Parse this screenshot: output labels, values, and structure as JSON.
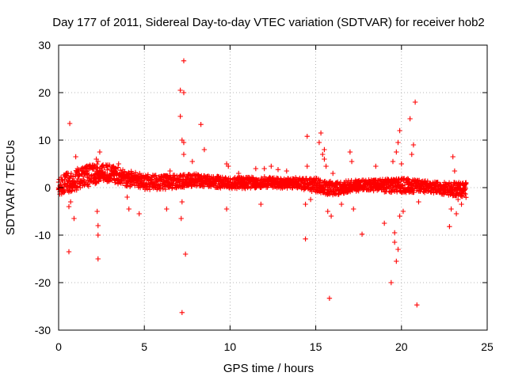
{
  "chart_data": {
    "type": "scatter",
    "title": "Day 177 of 2011, Sidereal Day-to-day VTEC variation (SDTVAR) for receiver hob2",
    "xlabel": "GPS time / hours",
    "ylabel": "SDTVAR / TECUs",
    "xlim": [
      0,
      25
    ],
    "ylim": [
      -30,
      30
    ],
    "xticks": [
      0,
      5,
      10,
      15,
      20,
      25
    ],
    "yticks": [
      30,
      20,
      10,
      0,
      -10,
      -20,
      -30
    ],
    "xtick_labels": [
      "0",
      "5",
      "10",
      "15",
      "20",
      "25"
    ],
    "ytick_labels": [
      "30",
      "20",
      "10",
      "0",
      "-10",
      "-20",
      "-30"
    ],
    "grid": true,
    "marker": "+",
    "color": "#ff0000",
    "band": {
      "x": [
        0,
        1,
        2,
        2.5,
        3,
        4,
        5,
        6,
        7,
        8,
        9,
        10,
        11,
        12,
        13,
        14,
        15,
        16,
        17,
        18,
        19,
        20,
        21,
        22,
        23,
        23.8
      ],
      "y": [
        0.5,
        1.5,
        2.8,
        3.2,
        3.0,
        2.0,
        1.2,
        1.0,
        1.3,
        1.6,
        1.3,
        0.9,
        1.0,
        1.2,
        0.9,
        1.0,
        0.5,
        -0.2,
        0.3,
        0.6,
        0.4,
        0.5,
        0.3,
        0.0,
        -0.3,
        -0.5
      ],
      "spread": [
        2.0,
        2.2,
        2.2,
        2.0,
        1.8,
        1.7,
        1.6,
        1.5,
        1.4,
        1.3,
        1.2,
        1.2,
        1.2,
        1.1,
        1.0,
        1.2,
        1.5,
        1.5,
        1.2,
        1.1,
        1.4,
        1.6,
        1.3,
        1.2,
        1.4,
        1.6
      ]
    },
    "points": [
      [
        0.65,
        13.5
      ],
      [
        0.6,
        -13.5
      ],
      [
        0.6,
        -4.0
      ],
      [
        0.7,
        -3.0
      ],
      [
        0.9,
        -6.5
      ],
      [
        1.0,
        6.5
      ],
      [
        1.1,
        4.0
      ],
      [
        1.4,
        4.0
      ],
      [
        2.3,
        -15.0
      ],
      [
        2.3,
        -10.0
      ],
      [
        2.3,
        -8.0
      ],
      [
        2.25,
        -5.0
      ],
      [
        2.4,
        7.5
      ],
      [
        2.2,
        6.0
      ],
      [
        2.3,
        5.5
      ],
      [
        3.5,
        5.0
      ],
      [
        3.2,
        4.5
      ],
      [
        4.0,
        -2.0
      ],
      [
        4.1,
        -4.5
      ],
      [
        4.7,
        -5.5
      ],
      [
        6.3,
        -4.5
      ],
      [
        6.5,
        3.5
      ],
      [
        7.3,
        26.7
      ],
      [
        7.1,
        20.5
      ],
      [
        7.3,
        20.0
      ],
      [
        7.1,
        15.0
      ],
      [
        7.2,
        10.0
      ],
      [
        7.3,
        9.5
      ],
      [
        7.2,
        -26.3
      ],
      [
        7.4,
        -14.0
      ],
      [
        7.15,
        -6.5
      ],
      [
        7.2,
        -3.0
      ],
      [
        7.3,
        7.0
      ],
      [
        7.8,
        5.5
      ],
      [
        8.3,
        13.3
      ],
      [
        8.5,
        8.0
      ],
      [
        9.8,
        5.0
      ],
      [
        9.9,
        4.5
      ],
      [
        9.8,
        -4.5
      ],
      [
        10.5,
        3.0
      ],
      [
        11.5,
        4.0
      ],
      [
        11.8,
        -3.5
      ],
      [
        12.4,
        4.5
      ],
      [
        12.0,
        4.0
      ],
      [
        12.8,
        3.8
      ],
      [
        13.3,
        3.5
      ],
      [
        14.4,
        -10.8
      ],
      [
        14.5,
        10.8
      ],
      [
        14.5,
        4.5
      ],
      [
        14.7,
        -2.5
      ],
      [
        14.4,
        -3.5
      ],
      [
        15.3,
        11.5
      ],
      [
        15.2,
        9.5
      ],
      [
        15.5,
        8.0
      ],
      [
        15.4,
        7.0
      ],
      [
        15.5,
        6.0
      ],
      [
        15.6,
        4.5
      ],
      [
        15.7,
        -5.0
      ],
      [
        15.9,
        -6.0
      ],
      [
        15.8,
        -23.3
      ],
      [
        16.0,
        3.0
      ],
      [
        16.5,
        -3.5
      ],
      [
        17.0,
        7.5
      ],
      [
        17.1,
        5.5
      ],
      [
        17.2,
        -4.5
      ],
      [
        17.7,
        -9.8
      ],
      [
        18.5,
        4.5
      ],
      [
        19.0,
        -7.5
      ],
      [
        19.4,
        -20.0
      ],
      [
        19.5,
        5.5
      ],
      [
        19.6,
        -11.5
      ],
      [
        19.7,
        -15.5
      ],
      [
        19.8,
        -13.0
      ],
      [
        19.9,
        12.0
      ],
      [
        19.8,
        9.5
      ],
      [
        19.7,
        7.5
      ],
      [
        19.6,
        -9.5
      ],
      [
        19.9,
        -6.0
      ],
      [
        20.0,
        5.0
      ],
      [
        20.1,
        -5.0
      ],
      [
        20.5,
        14.5
      ],
      [
        20.7,
        9.0
      ],
      [
        20.8,
        18.0
      ],
      [
        20.9,
        -24.7
      ],
      [
        21.0,
        -3.0
      ],
      [
        20.6,
        7.0
      ],
      [
        22.8,
        -8.2
      ],
      [
        23.0,
        6.5
      ],
      [
        23.1,
        3.5
      ],
      [
        22.9,
        -4.5
      ],
      [
        23.2,
        -5.5
      ],
      [
        23.3,
        -2.5
      ],
      [
        23.5,
        -3.5
      ]
    ]
  }
}
